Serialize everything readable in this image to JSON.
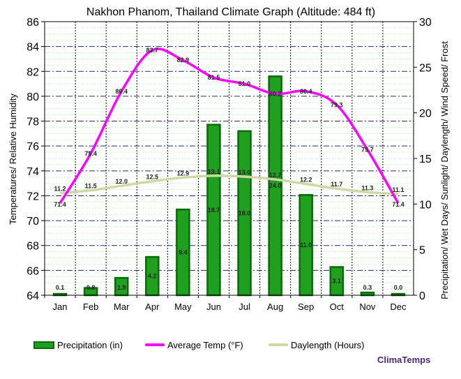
{
  "chart_data": {
    "type": "bar",
    "title": "Nakhon Phanom, Thailand Climate Graph (Altitude: 484 ft)",
    "ylabel_left": "Temperatures/ Relative Humidity",
    "ylabel_right": "Precipitation/ Wet Days/ Sunlight/ Daylength/ Wind Speed/ Frost",
    "categories": [
      "Jan",
      "Feb",
      "Mar",
      "Apr",
      "May",
      "Jun",
      "Jul",
      "Aug",
      "Sep",
      "Oct",
      "Nov",
      "Dec"
    ],
    "ylim_left": [
      64,
      86
    ],
    "ylim_right": [
      0,
      30
    ],
    "left_ticks": [
      "64",
      "66",
      "68",
      "70",
      "72",
      "74",
      "76",
      "78",
      "80",
      "82",
      "84",
      "86"
    ],
    "right_ticks": [
      "0",
      "5",
      "10",
      "15",
      "20",
      "25",
      "30"
    ],
    "series": [
      {
        "name": "Precipitation (in)",
        "kind": "bar",
        "axis": "right",
        "color": "#1fa01f",
        "values": [
          0.1,
          0.8,
          1.9,
          4.2,
          9.4,
          18.7,
          18.0,
          24.0,
          11.0,
          3.1,
          0.3,
          0.0
        ],
        "labels": [
          "0.1",
          "0.8",
          "1.9",
          "4.2",
          "9.4",
          "18.7",
          "18.0",
          "24.0",
          "11.0",
          "3.1",
          "0.3",
          "0.0"
        ]
      },
      {
        "name": "Average Temp (°F)",
        "kind": "line",
        "axis": "left",
        "color": "#ff00ff",
        "values": [
          71.4,
          75.4,
          80.4,
          83.7,
          82.9,
          81.5,
          81.0,
          80.2,
          80.4,
          79.3,
          75.7,
          71.4
        ],
        "labels": [
          "71.4",
          "75.4",
          "80.4",
          "83.7",
          "82.9",
          "81.5",
          "81.0",
          "80.2",
          "80.4",
          "79.3",
          "75.7",
          "71.4"
        ]
      },
      {
        "name": "Daylength (Hours)",
        "kind": "line",
        "axis": "right",
        "color": "#cfd8a0",
        "values": [
          11.2,
          11.5,
          12.0,
          12.5,
          12.9,
          13.1,
          13.0,
          12.7,
          12.2,
          11.7,
          11.3,
          11.1
        ],
        "labels": [
          "11.2",
          "11.5",
          "12.0",
          "12.5",
          "12.9",
          "13.1",
          "13.0",
          "12.7",
          "12.2",
          "11.7",
          "11.3",
          "11.1"
        ]
      }
    ]
  },
  "legend": {
    "precip": "Precipitation (in)",
    "temp": "Average Temp (°F)",
    "daylength": "Daylength (Hours)"
  },
  "brand": "ClimaTemps"
}
